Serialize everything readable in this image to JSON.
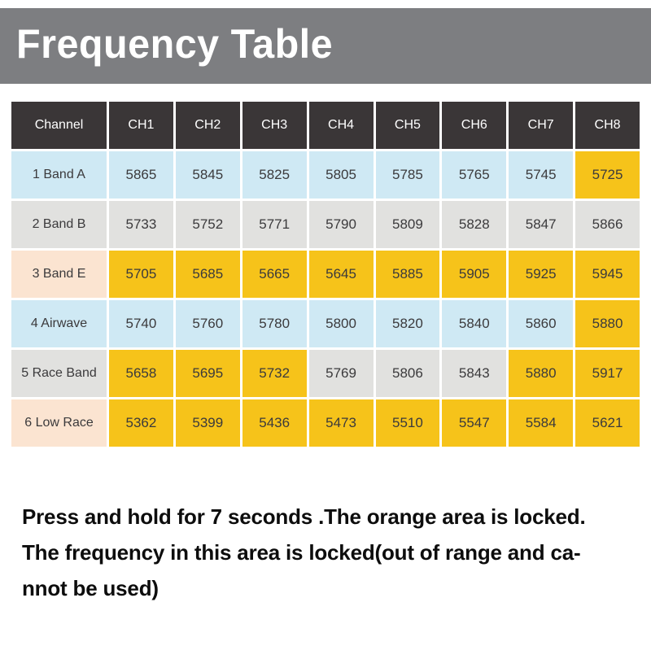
{
  "page": {
    "title": "Frequency Table"
  },
  "table": {
    "columns": [
      "Channel",
      "CH1",
      "CH2",
      "CH3",
      "CH4",
      "CH5",
      "CH6",
      "CH7",
      "CH8"
    ],
    "rows": [
      {
        "label": "1 Band A",
        "label_tone": "blue",
        "cell_tone": "blue",
        "cells": [
          {
            "value": "5865",
            "locked": false
          },
          {
            "value": "5845",
            "locked": false
          },
          {
            "value": "5825",
            "locked": false
          },
          {
            "value": "5805",
            "locked": false
          },
          {
            "value": "5785",
            "locked": false
          },
          {
            "value": "5765",
            "locked": false
          },
          {
            "value": "5745",
            "locked": false
          },
          {
            "value": "5725",
            "locked": true
          }
        ]
      },
      {
        "label": "2 Band B",
        "label_tone": "gray",
        "cell_tone": "gray",
        "cells": [
          {
            "value": "5733",
            "locked": false
          },
          {
            "value": "5752",
            "locked": false
          },
          {
            "value": "5771",
            "locked": false
          },
          {
            "value": "5790",
            "locked": false
          },
          {
            "value": "5809",
            "locked": false
          },
          {
            "value": "5828",
            "locked": false
          },
          {
            "value": "5847",
            "locked": false
          },
          {
            "value": "5866",
            "locked": false
          }
        ]
      },
      {
        "label": "3 Band E",
        "label_tone": "peach",
        "cell_tone": "peach",
        "cells": [
          {
            "value": "5705",
            "locked": true
          },
          {
            "value": "5685",
            "locked": true
          },
          {
            "value": "5665",
            "locked": true
          },
          {
            "value": "5645",
            "locked": true
          },
          {
            "value": "5885",
            "locked": true
          },
          {
            "value": "5905",
            "locked": true
          },
          {
            "value": "5925",
            "locked": true
          },
          {
            "value": "5945",
            "locked": true
          }
        ]
      },
      {
        "label": "4 Airwave",
        "label_tone": "blue",
        "cell_tone": "blue",
        "cells": [
          {
            "value": "5740",
            "locked": false
          },
          {
            "value": "5760",
            "locked": false
          },
          {
            "value": "5780",
            "locked": false
          },
          {
            "value": "5800",
            "locked": false
          },
          {
            "value": "5820",
            "locked": false
          },
          {
            "value": "5840",
            "locked": false
          },
          {
            "value": "5860",
            "locked": false
          },
          {
            "value": "5880",
            "locked": true
          }
        ]
      },
      {
        "label": "5 Race Band",
        "label_tone": "gray",
        "cell_tone": "gray",
        "cells": [
          {
            "value": "5658",
            "locked": true
          },
          {
            "value": "5695",
            "locked": true
          },
          {
            "value": "5732",
            "locked": true
          },
          {
            "value": "5769",
            "locked": false
          },
          {
            "value": "5806",
            "locked": false
          },
          {
            "value": "5843",
            "locked": false
          },
          {
            "value": "5880",
            "locked": true
          },
          {
            "value": "5917",
            "locked": true
          }
        ]
      },
      {
        "label": "6 Low Race",
        "label_tone": "peach",
        "cell_tone": "peach",
        "cells": [
          {
            "value": "5362",
            "locked": true
          },
          {
            "value": "5399",
            "locked": true
          },
          {
            "value": "5436",
            "locked": true
          },
          {
            "value": "5473",
            "locked": true
          },
          {
            "value": "5510",
            "locked": true
          },
          {
            "value": "5547",
            "locked": true
          },
          {
            "value": "5584",
            "locked": true
          },
          {
            "value": "5621",
            "locked": true
          }
        ]
      }
    ]
  },
  "note": {
    "lines": [
      "Press and hold for 7 seconds .The orange area is locked.",
      "The frequency in this area is locked(out of range and ca-",
      "nnot be used)"
    ]
  },
  "colors": {
    "banner_bg": "#7d7e81",
    "header_bg": "#3a3637",
    "blue": "#cfe9f4",
    "gray": "#e1e1df",
    "peach": "#fbe4d1",
    "orange": "#f6c31a",
    "cell_text": "#3b3a3c"
  }
}
